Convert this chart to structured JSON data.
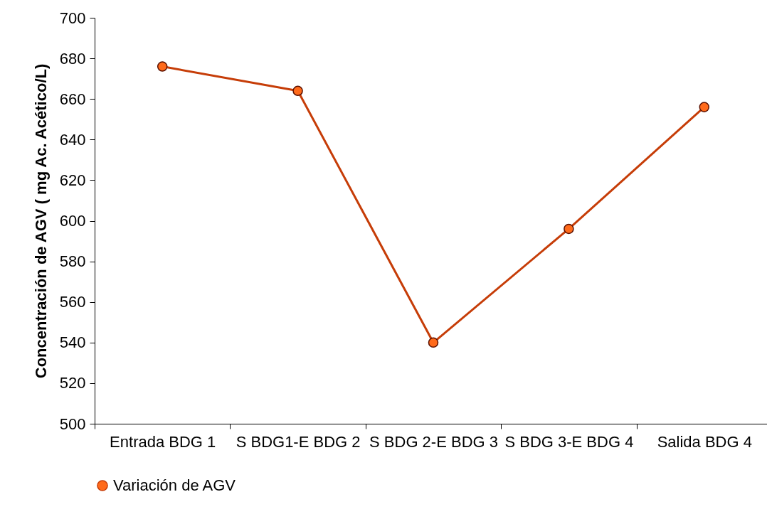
{
  "chart_data": {
    "type": "line",
    "ylabel": "Concentración de AGV ( mg Ac. Acético/L)",
    "categories": [
      "Entrada  BDG\n1",
      "S BDG1-E\nBDG 2",
      "S BDG 2-E\nBDG 3",
      "S BDG 3-E\nBDG 4",
      "Salida BDG 4"
    ],
    "series": [
      {
        "name": "Variación de AGV",
        "color": "#c63d08",
        "values": [
          676,
          664,
          540,
          596,
          656
        ]
      }
    ],
    "ylim": [
      500,
      700
    ],
    "yticks": [
      500,
      520,
      540,
      560,
      580,
      600,
      620,
      640,
      660,
      680,
      700
    ],
    "marker": "circle",
    "legend": "bottom",
    "grid": false
  }
}
